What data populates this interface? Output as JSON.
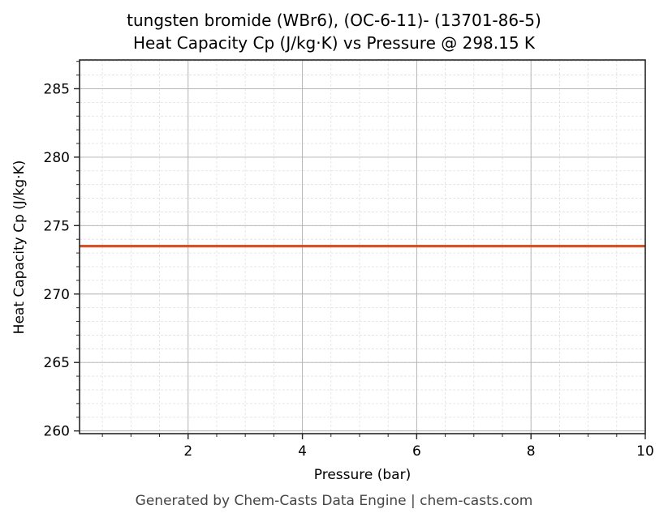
{
  "chart_data": {
    "type": "line",
    "title": "tungsten bromide (WBr6), (OC-6-11)- (13701-86-5)",
    "subtitle": "Heat Capacity Cp (J/kg·K) vs Pressure @ 298.15 K",
    "xlabel": "Pressure (bar)",
    "ylabel": "Heat Capacity Cp (J/kg·K)",
    "xlim": [
      0.1,
      10
    ],
    "ylim": [
      259.8,
      287.1
    ],
    "xticks": [
      2,
      4,
      6,
      8,
      10
    ],
    "yticks": [
      260,
      265,
      270,
      275,
      280,
      285
    ],
    "x_minor_step": 0.5,
    "y_minor_step": 1,
    "grid": true,
    "legend": null,
    "series": [
      {
        "name": "Cp",
        "color": "#d35428",
        "x": [
          0.1,
          1,
          2,
          3,
          4,
          5,
          6,
          7,
          8,
          9,
          10
        ],
        "values": [
          273.5,
          273.5,
          273.5,
          273.5,
          273.5,
          273.5,
          273.5,
          273.5,
          273.5,
          273.5,
          273.5
        ]
      }
    ]
  },
  "footer": "Generated by Chem-Casts Data Engine | chem-casts.com"
}
